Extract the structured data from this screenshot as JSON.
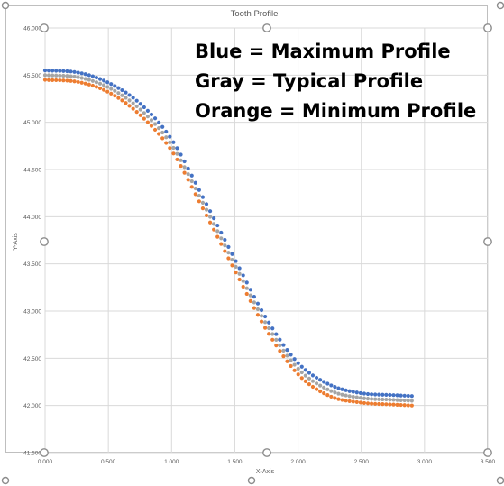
{
  "chart_data": {
    "type": "scatter",
    "title": "Tooth Profile",
    "xlabel": "X-Axis",
    "ylabel": "Y-Axis",
    "xlim": [
      0,
      3.5
    ],
    "ylim": [
      41.5,
      46.0
    ],
    "x_ticks": [
      "0.000",
      "0.500",
      "1.000",
      "1.500",
      "2.000",
      "2.500",
      "3.000",
      "3.500"
    ],
    "y_ticks": [
      "41.500",
      "42.000",
      "42.500",
      "43.000",
      "43.500",
      "44.000",
      "44.500",
      "45.000",
      "45.500",
      "46.000"
    ],
    "grid": true,
    "series": [
      {
        "color": "#4472c4",
        "x": [
          0.0,
          0.25,
          0.5,
          0.75,
          1.0,
          1.25,
          1.5,
          1.75,
          2.0,
          2.25,
          2.5,
          2.75,
          2.9
        ],
        "y": [
          45.55,
          45.53,
          45.42,
          45.2,
          44.82,
          44.2,
          43.55,
          42.92,
          42.45,
          42.22,
          42.13,
          42.11,
          42.1
        ]
      },
      {
        "color": "#a5a5a5",
        "x": [
          0.0,
          0.25,
          0.5,
          0.75,
          1.0,
          1.25,
          1.5,
          1.75,
          2.0,
          2.25,
          2.5,
          2.75,
          2.9
        ],
        "y": [
          45.5,
          45.48,
          45.37,
          45.14,
          44.76,
          44.14,
          43.49,
          42.86,
          42.39,
          42.16,
          42.08,
          42.06,
          42.05
        ]
      },
      {
        "color": "#ed7d31",
        "x": [
          0.0,
          0.25,
          0.5,
          0.75,
          1.0,
          1.25,
          1.5,
          1.75,
          2.0,
          2.25,
          2.5,
          2.75,
          2.9
        ],
        "y": [
          45.45,
          45.43,
          45.32,
          45.08,
          44.7,
          44.08,
          43.43,
          42.8,
          42.33,
          42.1,
          42.03,
          42.01,
          42.0
        ]
      }
    ],
    "annotations": [
      "Blue = Maximum Profile",
      "Gray = Typical Profile",
      "Orange = Minimum Profile"
    ]
  }
}
